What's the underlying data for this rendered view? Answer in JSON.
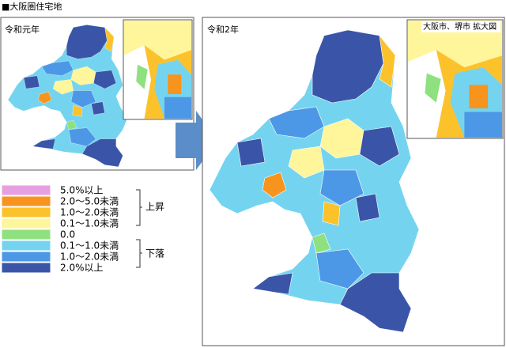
{
  "header": {
    "title": "■大阪圏住宅地"
  },
  "panels": [
    {
      "label": "令和元年"
    },
    {
      "label": "令和2年",
      "inset_label": "大阪市、堺市 拡大図"
    }
  ],
  "legend": {
    "items": [
      {
        "label": "5.0%以上",
        "color": "#e6a0e0"
      },
      {
        "label": "2.0～5.0未満",
        "color": "#f7941d"
      },
      {
        "label": "1.0～2.0未満",
        "color": "#fcc22c"
      },
      {
        "label": "0.1～1.0未満",
        "color": "#fff59a"
      },
      {
        "label": "0.0",
        "color": "#8fe07f"
      },
      {
        "label": "0.1～1.0未満",
        "color": "#74d4f0"
      },
      {
        "label": "1.0～2.0未満",
        "color": "#4d98e6"
      },
      {
        "label": "2.0%以上",
        "color": "#3a55a8"
      }
    ],
    "groups": [
      {
        "label": "上昇"
      },
      {
        "label": "下落"
      }
    ]
  }
}
